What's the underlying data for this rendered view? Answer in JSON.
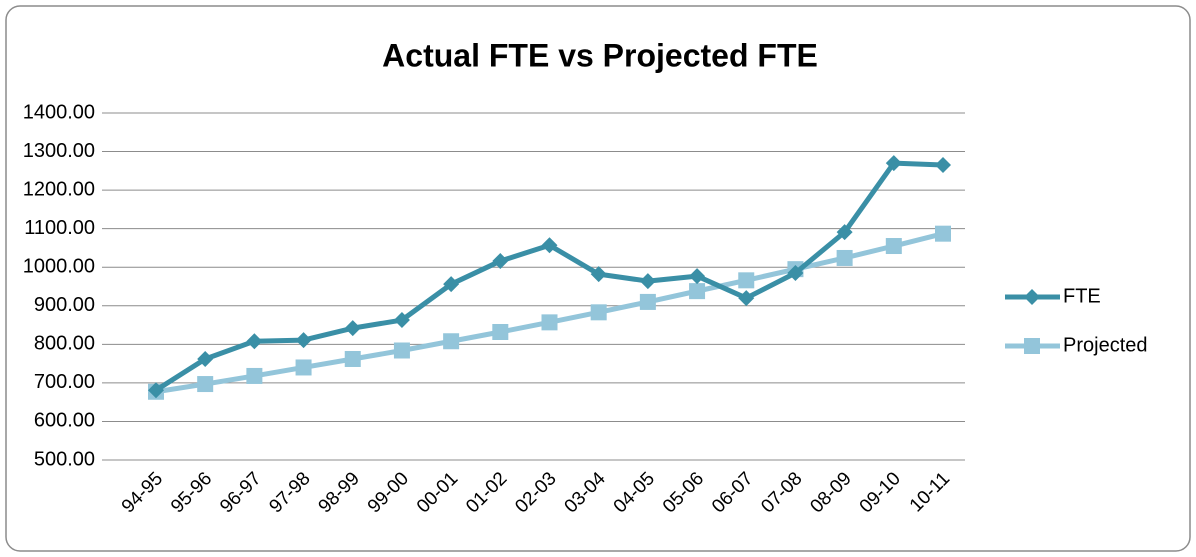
{
  "chart_data": {
    "type": "line",
    "title": "Actual FTE vs Projected FTE",
    "categories": [
      "94-95",
      "95-96",
      "96-97",
      "97-98",
      "98-99",
      "99-00",
      "00-01",
      "01-02",
      "02-03",
      "03-04",
      "04-05",
      "05-06",
      "06-07",
      "07-08",
      "08-09",
      "09-10",
      "10-11"
    ],
    "series": [
      {
        "name": "FTE",
        "color": "#3a8fa6",
        "marker": "diamond",
        "values": [
          681,
          762,
          808,
          811,
          842,
          863,
          956,
          1016,
          1057,
          982,
          964,
          977,
          920,
          985,
          1091,
          1270,
          1265
        ]
      },
      {
        "name": "Projected",
        "color": "#93c5da",
        "marker": "square",
        "values": [
          677,
          697,
          718,
          740,
          762,
          784,
          808,
          832,
          857,
          883,
          910,
          938,
          966,
          995,
          1024,
          1055,
          1087
        ]
      }
    ],
    "ylim": [
      500,
      1400
    ],
    "yticks": [
      {
        "value": 500,
        "label": "500.00"
      },
      {
        "value": 600,
        "label": "600.00"
      },
      {
        "value": 700,
        "label": "700.00"
      },
      {
        "value": 800,
        "label": "800.00"
      },
      {
        "value": 900,
        "label": "900.00"
      },
      {
        "value": 1000,
        "label": "1000.00"
      },
      {
        "value": 1100,
        "label": "1100.00"
      },
      {
        "value": 1200,
        "label": "1200.00"
      },
      {
        "value": 1300,
        "label": "1300.00"
      },
      {
        "value": 1400,
        "label": "1400.00"
      }
    ],
    "grid": true,
    "legend": "right"
  }
}
